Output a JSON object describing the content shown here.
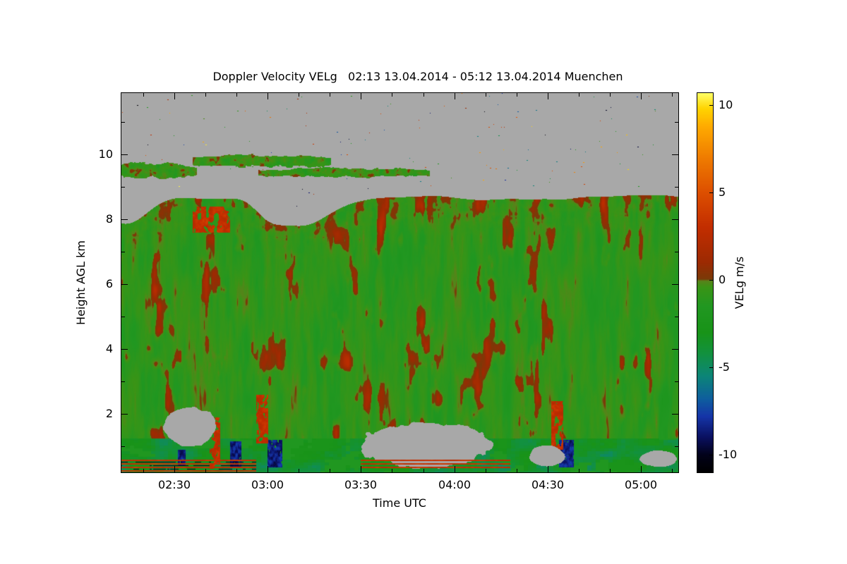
{
  "chart_data": {
    "type": "heatmap",
    "title": "Doppler Velocity VELg   02:13 13.04.2014 - 05:12 13.04.2014 Muenchen",
    "xlabel": "Time UTC",
    "ylabel": "Height AGL km",
    "background": "#ffffff",
    "x_range_hours": [
      2.2167,
      5.2
    ],
    "y_range_km": [
      0.2,
      11.9
    ],
    "x_ticks": [
      {
        "label": "02:30",
        "t": 2.5
      },
      {
        "label": "03:00",
        "t": 3.0
      },
      {
        "label": "03:30",
        "t": 3.5
      },
      {
        "label": "04:00",
        "t": 4.0
      },
      {
        "label": "04:30",
        "t": 4.5
      },
      {
        "label": "05:00",
        "t": 5.0
      }
    ],
    "x_minor_step_minutes": 10,
    "y_ticks": [
      {
        "label": "2",
        "h": 2
      },
      {
        "label": "4",
        "h": 4
      },
      {
        "label": "6",
        "h": 6
      },
      {
        "label": "8",
        "h": 8
      },
      {
        "label": "10",
        "h": 10
      }
    ],
    "y_minor_step_km": 1,
    "colorbar": {
      "label": "VELg m/s",
      "range": [
        -11,
        10.7
      ],
      "ticks": [
        {
          "label": "10",
          "v": 10
        },
        {
          "label": "5",
          "v": 5
        },
        {
          "label": "0",
          "v": 0
        },
        {
          "label": "-5",
          "v": -5
        },
        {
          "label": "-10",
          "v": -10
        }
      ],
      "stops": [
        {
          "v": -11,
          "color": "#000000"
        },
        {
          "v": -10,
          "color": "#02021a"
        },
        {
          "v": -9,
          "color": "#0a1060"
        },
        {
          "v": -7.8,
          "color": "#1535a8"
        },
        {
          "v": -6.8,
          "color": "#0e5e9e"
        },
        {
          "v": -5.5,
          "color": "#0c8578"
        },
        {
          "v": -4.2,
          "color": "#12913f"
        },
        {
          "v": -3,
          "color": "#189318"
        },
        {
          "v": -1.5,
          "color": "#219721"
        },
        {
          "v": -0.4,
          "color": "#3a9416"
        },
        {
          "v": -0.05,
          "color": "#58831a"
        },
        {
          "v": 0.05,
          "color": "#7a3a08"
        },
        {
          "v": 1,
          "color": "#9c2a02"
        },
        {
          "v": 3,
          "color": "#c22d00"
        },
        {
          "v": 5,
          "color": "#dd4f00"
        },
        {
          "v": 7,
          "color": "#ef7c00"
        },
        {
          "v": 8.8,
          "color": "#ffab00"
        },
        {
          "v": 9.8,
          "color": "#ffd400"
        },
        {
          "v": 10.7,
          "color": "#ffff66"
        }
      ]
    },
    "no_data_color": "#a8a8a8",
    "features": {
      "echo_top_km": 8.72,
      "melting_band_top_km": 1.25,
      "cloudtop_dips": [
        {
          "t": 2.24,
          "depth": 0.85,
          "width": 0.16
        },
        {
          "t": 3.0,
          "depth": 0.45,
          "width": 0.1
        },
        {
          "t": 3.18,
          "depth": 0.8,
          "width": 0.2
        }
      ],
      "cloud_band": [
        {
          "t": [
            2.2167,
            2.62
          ],
          "h": [
            9.22,
            9.8
          ]
        },
        {
          "t": [
            2.6,
            3.34
          ],
          "h": [
            9.55,
            10.05
          ]
        },
        {
          "t": [
            2.95,
            3.87
          ],
          "h": [
            9.26,
            9.62
          ]
        }
      ],
      "gray_blobs": [
        {
          "t": [
            2.44,
            2.74
          ],
          "h": [
            0.9,
            2.3
          ]
        },
        {
          "t": [
            3.47,
            4.22
          ],
          "h": [
            0.25,
            1.8
          ]
        },
        {
          "t": [
            4.4,
            4.6
          ],
          "h": [
            0.35,
            1.05
          ]
        },
        {
          "t": [
            4.98,
            5.2
          ],
          "h": [
            0.35,
            0.9
          ]
        }
      ],
      "blue_streaks": [
        {
          "t": [
            2.52,
            2.56
          ],
          "h": [
            0.4,
            0.9
          ]
        },
        {
          "t": [
            2.8,
            2.86
          ],
          "h": [
            0.35,
            1.15
          ]
        },
        {
          "t": [
            3.0,
            3.08
          ],
          "h": [
            0.35,
            1.2
          ]
        },
        {
          "t": [
            4.56,
            4.64
          ],
          "h": [
            0.35,
            1.2
          ]
        }
      ],
      "red_streaks": [
        {
          "t": [
            2.6,
            2.8
          ],
          "h": [
            7.6,
            8.4
          ]
        },
        {
          "t": [
            2.69,
            2.745
          ],
          "h": [
            0.3,
            1.9
          ]
        },
        {
          "t": [
            2.94,
            3.005
          ],
          "h": [
            1.1,
            2.6
          ]
        },
        {
          "t": [
            4.52,
            4.585
          ],
          "h": [
            0.9,
            2.4
          ]
        }
      ],
      "bottom_stripes": [
        {
          "t": [
            2.2167,
            2.94
          ],
          "h": [
            0.2,
            0.62
          ],
          "dark": true
        },
        {
          "t": [
            3.5,
            4.3
          ],
          "h": [
            0.28,
            0.66
          ],
          "dark": false
        }
      ],
      "speckle_count": 150
    }
  }
}
